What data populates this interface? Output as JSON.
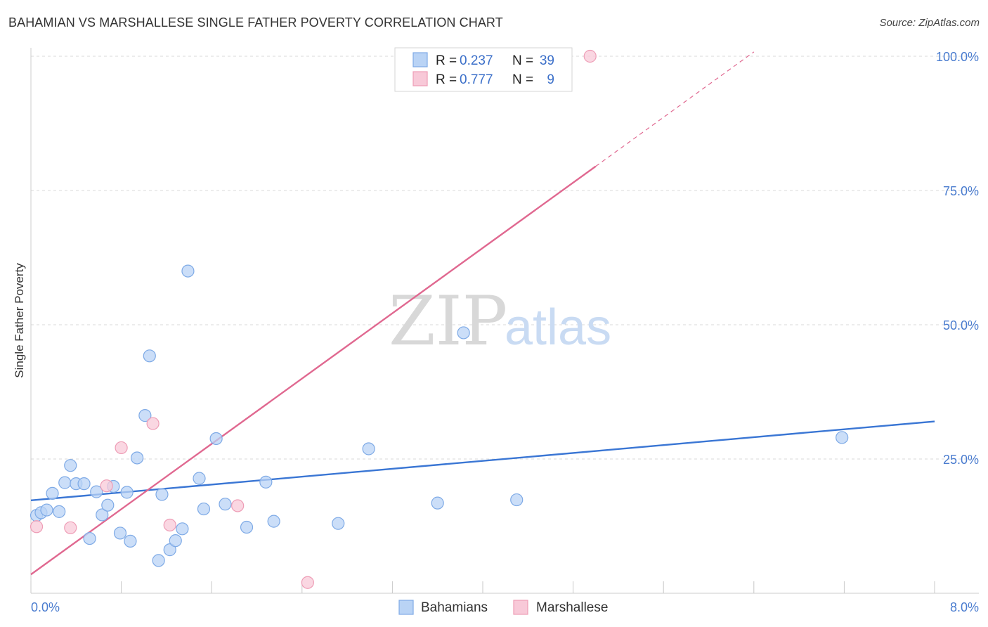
{
  "title": "BAHAMIAN VS MARSHALLESE SINGLE FATHER POVERTY CORRELATION CHART",
  "source": "Source: ZipAtlas.com",
  "watermark": {
    "zip": "ZIP",
    "atlas": "atlas"
  },
  "colors": {
    "blue": "#3a76d4",
    "blue_fill": "#b9d3f5",
    "blue_stroke": "#7eaae6",
    "pink": "#e06890",
    "pink_fill": "#f8c9d8",
    "pink_stroke": "#ee9db6",
    "grid": "#d9d9d9",
    "tick_text": "#4a7ccf"
  },
  "legend_box": {
    "rows": [
      {
        "r_label": "R = ",
        "r_value": "0.237",
        "n_label": "N = ",
        "n_value": "39",
        "color": "blue"
      },
      {
        "r_label": "R = ",
        "r_value": "0.777",
        "n_label": "N = ",
        "n_value": "9",
        "color": "pink"
      }
    ]
  },
  "bottom_legend": [
    {
      "label": "Bahamians",
      "color": "blue"
    },
    {
      "label": "Marshallese",
      "color": "pink"
    }
  ],
  "chart_data": {
    "type": "scatter",
    "title": "BAHAMIAN VS MARSHALLESE SINGLE FATHER POVERTY CORRELATION CHART",
    "xlabel": "",
    "ylabel": "Single Father Poverty",
    "xlim": [
      0,
      8
    ],
    "ylim": [
      0,
      100
    ],
    "x_tick_labels": [
      "0.0%",
      "8.0%"
    ],
    "y_ticks": [
      25,
      50,
      75,
      100
    ],
    "y_tick_labels": [
      "25.0%",
      "50.0%",
      "75.0%",
      "100.0%"
    ],
    "grid": true,
    "series": [
      {
        "name": "Bahamians",
        "color": "blue",
        "r": 0.237,
        "n": 39,
        "points": [
          [
            0.05,
            14.5
          ],
          [
            0.09,
            15.0
          ],
          [
            0.14,
            15.5
          ],
          [
            0.19,
            18.6
          ],
          [
            0.25,
            15.2
          ],
          [
            0.3,
            20.6
          ],
          [
            0.35,
            23.8
          ],
          [
            0.4,
            20.4
          ],
          [
            0.47,
            20.4
          ],
          [
            0.52,
            10.2
          ],
          [
            0.58,
            18.9
          ],
          [
            0.63,
            14.6
          ],
          [
            0.68,
            16.4
          ],
          [
            0.73,
            19.9
          ],
          [
            0.79,
            11.2
          ],
          [
            0.85,
            18.8
          ],
          [
            0.88,
            9.7
          ],
          [
            0.94,
            25.2
          ],
          [
            1.01,
            33.1
          ],
          [
            1.05,
            44.2
          ],
          [
            1.13,
            6.1
          ],
          [
            1.16,
            18.4
          ],
          [
            1.23,
            8.1
          ],
          [
            1.28,
            9.8
          ],
          [
            1.34,
            12.0
          ],
          [
            1.39,
            60.0
          ],
          [
            1.49,
            21.4
          ],
          [
            1.53,
            15.7
          ],
          [
            1.64,
            28.8
          ],
          [
            1.72,
            16.6
          ],
          [
            1.91,
            12.3
          ],
          [
            2.08,
            20.7
          ],
          [
            2.15,
            13.4
          ],
          [
            2.72,
            13.0
          ],
          [
            2.99,
            26.9
          ],
          [
            3.6,
            16.8
          ],
          [
            3.83,
            48.5
          ],
          [
            4.3,
            17.4
          ],
          [
            7.18,
            29.0
          ]
        ]
      },
      {
        "name": "Marshallese",
        "color": "pink",
        "r": 0.777,
        "n": 9,
        "points": [
          [
            0.05,
            12.4
          ],
          [
            0.35,
            12.2
          ],
          [
            0.8,
            27.1
          ],
          [
            0.67,
            20.0
          ],
          [
            1.08,
            31.6
          ],
          [
            1.23,
            12.7
          ],
          [
            1.83,
            16.3
          ],
          [
            2.45,
            2.0
          ],
          [
            4.95,
            100.0
          ]
        ]
      }
    ],
    "trendlines": [
      {
        "series": "Bahamians",
        "x0": 0.0,
        "y0": 17.3,
        "x1": 8.0,
        "y1": 32.0,
        "style": "solid"
      },
      {
        "series": "Marshallese",
        "x0": 0.0,
        "y0": 3.5,
        "x1": 5.0,
        "y1": 79.5,
        "style": "solid"
      },
      {
        "series": "Marshallese",
        "x0": 5.0,
        "y0": 79.5,
        "x1": 6.4,
        "y1": 100.8,
        "style": "dashed"
      }
    ]
  }
}
